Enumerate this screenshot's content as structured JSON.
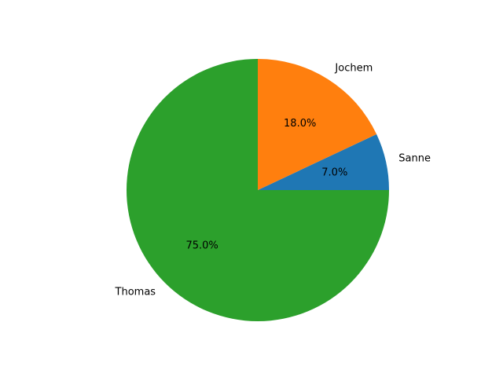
{
  "chart_data": {
    "type": "pie",
    "labels": [
      "Sanne",
      "Jochem",
      "Thomas"
    ],
    "values": [
      7.0,
      18.0,
      75.0
    ],
    "percent_labels": [
      "7.0%",
      "18.0%",
      "75.0%"
    ],
    "colors": [
      "#1f77b4",
      "#ff7f0e",
      "#2ca02c"
    ],
    "start_angle_deg": 0,
    "direction": "counterclockwise",
    "title": ""
  }
}
